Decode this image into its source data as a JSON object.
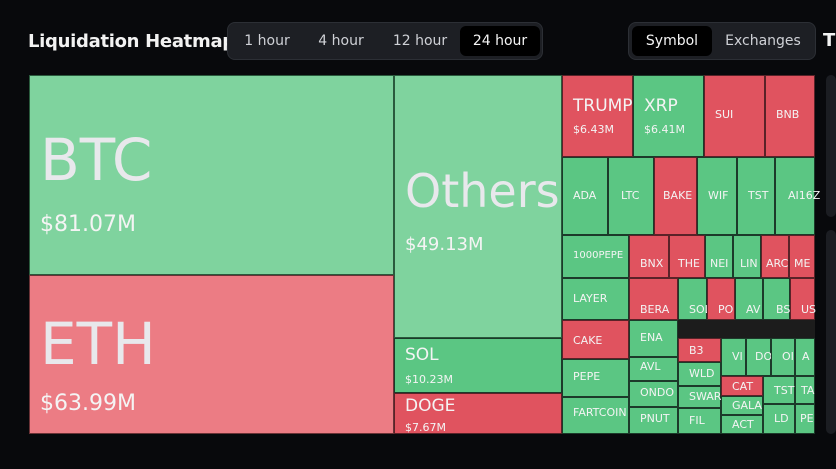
{
  "header": {
    "title": "Liquidation Heatmap",
    "time_ranges": [
      "1 hour",
      "4 hour",
      "12 hour",
      "24 hour"
    ],
    "active_time_range": "24 hour",
    "group_by": [
      "Symbol",
      "Exchanges"
    ],
    "active_group_by": "Symbol",
    "edge_fragment": "T"
  },
  "colors": {
    "background": "#08090c",
    "long_green": "#5bc683",
    "long_green_pale": "#7fd39e",
    "short_red": "#e0535f",
    "short_pink": "#ec7c84"
  },
  "tiles": [
    {
      "symbol": "BTC",
      "value": "$81.07M"
    },
    {
      "symbol": "ETH",
      "value": "$63.99M"
    },
    {
      "symbol": "Others",
      "value": "$49.13M"
    },
    {
      "symbol": "SOL",
      "value": "$10.23M"
    },
    {
      "symbol": "DOGE",
      "value": "$7.67M"
    },
    {
      "symbol": "TRUMP",
      "value": "$6.43M"
    },
    {
      "symbol": "XRP",
      "value": "$6.41M"
    },
    {
      "symbol": "SUI",
      "value": ""
    },
    {
      "symbol": "BNB",
      "value": ""
    },
    {
      "symbol": "ADA",
      "value": ""
    },
    {
      "symbol": "LTC",
      "value": ""
    },
    {
      "symbol": "BAKE",
      "value": ""
    },
    {
      "symbol": "WIF",
      "value": ""
    },
    {
      "symbol": "TST",
      "value": ""
    },
    {
      "symbol": "AI16Z",
      "value": ""
    },
    {
      "symbol": "1000PEPE",
      "value": ""
    },
    {
      "symbol": "BNX",
      "value": ""
    },
    {
      "symbol": "THE",
      "value": ""
    },
    {
      "symbol": "NEI",
      "value": ""
    },
    {
      "symbol": "LIN",
      "value": ""
    },
    {
      "symbol": "ARC",
      "value": ""
    },
    {
      "symbol": "ME",
      "value": ""
    },
    {
      "symbol": "LAYER",
      "value": ""
    },
    {
      "symbol": "BERA",
      "value": ""
    },
    {
      "symbol": "SOL",
      "value": ""
    },
    {
      "symbol": "PO",
      "value": ""
    },
    {
      "symbol": "AV",
      "value": ""
    },
    {
      "symbol": "BS",
      "value": ""
    },
    {
      "symbol": "US",
      "value": ""
    },
    {
      "symbol": "CAKE",
      "value": ""
    },
    {
      "symbol": "ENA",
      "value": ""
    },
    {
      "symbol": "B3",
      "value": ""
    },
    {
      "symbol": "VI",
      "value": ""
    },
    {
      "symbol": "DO",
      "value": ""
    },
    {
      "symbol": "OI",
      "value": ""
    },
    {
      "symbol": "A",
      "value": ""
    },
    {
      "symbol": "PEPE",
      "value": ""
    },
    {
      "symbol": "AVL",
      "value": ""
    },
    {
      "symbol": "WLD",
      "value": ""
    },
    {
      "symbol": "CAT",
      "value": ""
    },
    {
      "symbol": "TST",
      "value": ""
    },
    {
      "symbol": "TA",
      "value": ""
    },
    {
      "symbol": "ONDO",
      "value": ""
    },
    {
      "symbol": "SWAR",
      "value": ""
    },
    {
      "symbol": "GALA",
      "value": ""
    },
    {
      "symbol": "FARTCOIN",
      "value": ""
    },
    {
      "symbol": "PNUT",
      "value": ""
    },
    {
      "symbol": "FIL",
      "value": ""
    },
    {
      "symbol": "ACT",
      "value": ""
    },
    {
      "symbol": "LD",
      "value": ""
    },
    {
      "symbol": "PE",
      "value": ""
    }
  ]
}
